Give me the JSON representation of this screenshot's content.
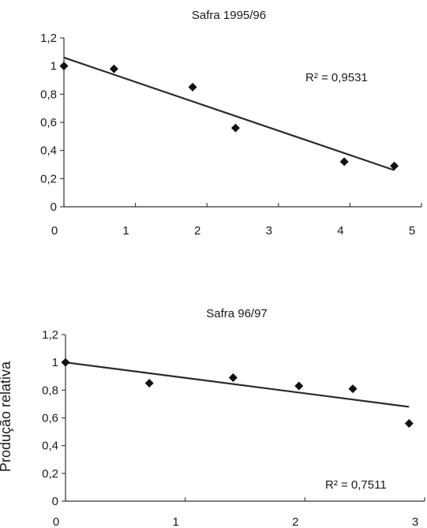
{
  "chart_data": [
    {
      "type": "scatter",
      "title": "Safra 1995/96",
      "xlabel": "",
      "ylabel": "",
      "xlim": [
        0,
        5
      ],
      "ylim": [
        0,
        1.2
      ],
      "x_ticks": [
        "0",
        "1",
        "2",
        "3",
        "4",
        "5"
      ],
      "y_ticks": [
        "0",
        "0,2",
        "0,4",
        "0,6",
        "0,8",
        "1",
        "1,2"
      ],
      "points": [
        {
          "x": 0,
          "y": 1.0
        },
        {
          "x": 0.7,
          "y": 0.98
        },
        {
          "x": 1.8,
          "y": 0.85
        },
        {
          "x": 2.4,
          "y": 0.56
        },
        {
          "x": 3.92,
          "y": 0.32
        },
        {
          "x": 4.62,
          "y": 0.29
        }
      ],
      "trendline": {
        "type": "linear",
        "x": [
          0,
          4.62
        ],
        "y": [
          1.06,
          0.26
        ]
      },
      "r2_label": "R² = 0,9531",
      "grid": false,
      "legend": "none"
    },
    {
      "type": "scatter",
      "title": "Safra 96/97",
      "xlabel": "",
      "ylabel": "Produção relativa",
      "xlim": [
        0,
        3
      ],
      "ylim": [
        0,
        1.2
      ],
      "x_ticks": [
        "0",
        "1",
        "2",
        "3"
      ],
      "y_ticks": [
        "0",
        "0,2",
        "0,4",
        "0,6",
        "0,8",
        "1",
        "1,2"
      ],
      "points": [
        {
          "x": 0,
          "y": 1.0
        },
        {
          "x": 0.7,
          "y": 0.85
        },
        {
          "x": 1.4,
          "y": 0.89
        },
        {
          "x": 1.95,
          "y": 0.83
        },
        {
          "x": 2.4,
          "y": 0.81
        },
        {
          "x": 2.87,
          "y": 0.56
        }
      ],
      "trendline": {
        "type": "linear",
        "x": [
          0,
          2.87
        ],
        "y": [
          1.0,
          0.68
        ]
      },
      "r2_label": "R² = 0,7511",
      "grid": false,
      "legend": "none"
    }
  ]
}
